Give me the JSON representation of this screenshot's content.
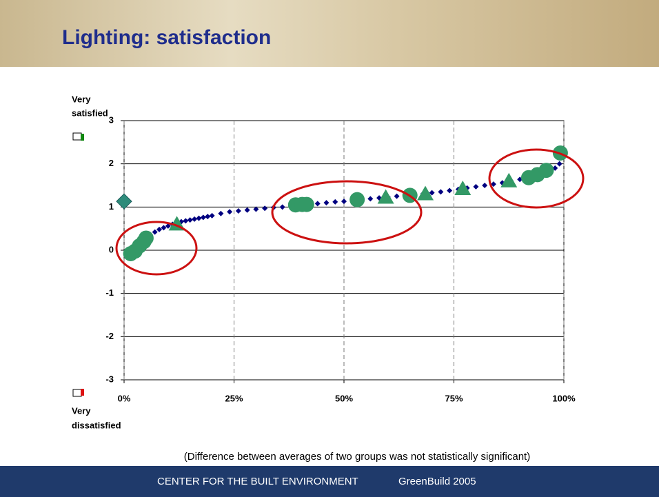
{
  "header": {
    "title": "Lighting: satisfaction"
  },
  "chart_data": {
    "type": "scatter",
    "top_label": [
      "Very",
      "satisfied"
    ],
    "bottom_label": [
      "Very",
      "dissatisfied"
    ],
    "note": "(Difference between averages of two groups was not statistically significant)",
    "xlim": [
      0,
      100
    ],
    "xticks": [
      {
        "value": 0,
        "label": "0%"
      },
      {
        "value": 25,
        "label": "25%"
      },
      {
        "value": 50,
        "label": "50%"
      },
      {
        "value": 75,
        "label": "75%"
      },
      {
        "value": 100,
        "label": "100%"
      }
    ],
    "ylim": [
      -3,
      3
    ],
    "yticks": [
      -3,
      -2,
      -1,
      0,
      1,
      2,
      3
    ],
    "grid": true,
    "series": [
      {
        "color": "#000080",
        "marker": "diamond",
        "x": [
          1,
          2,
          3,
          4,
          5,
          6,
          7,
          8,
          9,
          10,
          11,
          12,
          13,
          14,
          15,
          16,
          17,
          18,
          19,
          20,
          22,
          24,
          26,
          28,
          30,
          32,
          34,
          36,
          38,
          40,
          42,
          44,
          46,
          48,
          50,
          52,
          54,
          56,
          58,
          60,
          62,
          64,
          66,
          68,
          70,
          72,
          74,
          76,
          78,
          80,
          82,
          84,
          86,
          88,
          90,
          92,
          94,
          96,
          98,
          99,
          100
        ],
        "values": [
          -0.05,
          0.05,
          0.12,
          0.2,
          0.28,
          0.35,
          0.42,
          0.48,
          0.52,
          0.56,
          0.6,
          0.63,
          0.66,
          0.68,
          0.7,
          0.72,
          0.74,
          0.76,
          0.78,
          0.8,
          0.85,
          0.89,
          0.91,
          0.93,
          0.95,
          0.97,
          0.99,
          1.0,
          1.02,
          1.04,
          1.06,
          1.08,
          1.1,
          1.12,
          1.13,
          1.15,
          1.17,
          1.19,
          1.21,
          1.23,
          1.25,
          1.27,
          1.29,
          1.31,
          1.33,
          1.35,
          1.38,
          1.41,
          1.44,
          1.47,
          1.5,
          1.53,
          1.56,
          1.6,
          1.64,
          1.68,
          1.74,
          1.8,
          1.9,
          2.0,
          2.2
        ]
      },
      {
        "color": "#339966",
        "marker": "circle",
        "x": [
          1.5,
          2.5,
          3.5,
          4.5,
          5,
          39,
          40.5,
          41.5,
          53,
          65,
          92,
          94,
          96,
          99.2
        ],
        "values": [
          -0.08,
          -0.02,
          0.1,
          0.2,
          0.28,
          1.05,
          1.06,
          1.06,
          1.17,
          1.27,
          1.68,
          1.75,
          1.85,
          2.25
        ]
      },
      {
        "color": "#339966",
        "marker": "triangle",
        "x": [
          12,
          59.5,
          68.5,
          77,
          87.5
        ],
        "values": [
          0.6,
          1.22,
          1.3,
          1.42,
          1.6
        ]
      },
      {
        "color": "#2E8B7A",
        "marker": "diamond-large",
        "x": [
          0
        ],
        "values": [
          1.13
        ]
      }
    ]
  },
  "footer": {
    "org": "CENTER FOR THE BUILT ENVIRONMENT",
    "event": "GreenBuild 2005"
  }
}
